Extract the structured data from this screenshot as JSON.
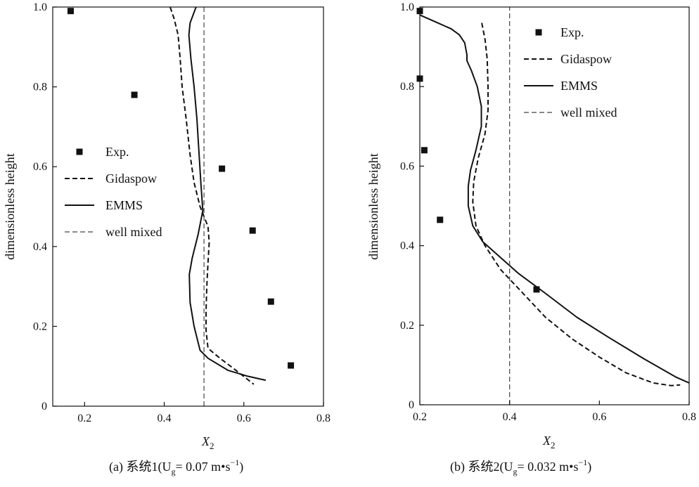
{
  "chart_data": [
    {
      "type": "scatter",
      "caption": "(a) 系统1(U",
      "caption_sub": "g",
      "caption_rest": "= 0.07 m•s",
      "caption_sup": "−1",
      "caption_end": ")",
      "xlabel": "X",
      "xlabel_sub": "2",
      "ylabel": "dimensionless  height",
      "xlim": [
        0.12,
        0.8
      ],
      "ylim": [
        0,
        1.0
      ],
      "x_ticks": [
        "0.2",
        "0.4",
        "0.6",
        "0.8"
      ],
      "x_tick_values": [
        0.2,
        0.4,
        0.6,
        0.8
      ],
      "y_ticks": [
        "0",
        "0.2",
        "0.4",
        "0.6",
        "0.8",
        "1.0"
      ],
      "y_tick_values": [
        0,
        0.2,
        0.4,
        0.6,
        0.8,
        1.0
      ],
      "legend_placement": "middle-left",
      "series": [
        {
          "name": "Exp.",
          "kind": "markers",
          "points": [
            [
              0.165,
              0.99
            ],
            [
              0.325,
              0.78
            ],
            [
              0.545,
              0.595
            ],
            [
              0.622,
              0.44
            ],
            [
              0.668,
              0.262
            ],
            [
              0.718,
              0.102
            ]
          ]
        },
        {
          "name": "Gidaspow",
          "kind": "dashed",
          "points": [
            [
              0.415,
              1.0
            ],
            [
              0.425,
              0.97
            ],
            [
              0.435,
              0.93
            ],
            [
              0.44,
              0.87
            ],
            [
              0.445,
              0.8
            ],
            [
              0.455,
              0.72
            ],
            [
              0.465,
              0.63
            ],
            [
              0.475,
              0.56
            ],
            [
              0.49,
              0.5
            ],
            [
              0.51,
              0.45
            ],
            [
              0.513,
              0.41
            ],
            [
              0.51,
              0.36
            ],
            [
              0.507,
              0.3
            ],
            [
              0.505,
              0.24
            ],
            [
              0.505,
              0.19
            ],
            [
              0.51,
              0.145
            ],
            [
              0.54,
              0.12
            ],
            [
              0.58,
              0.09
            ],
            [
              0.625,
              0.055
            ]
          ]
        },
        {
          "name": "EMMS",
          "kind": "solid",
          "points": [
            [
              0.48,
              1.0
            ],
            [
              0.465,
              0.96
            ],
            [
              0.462,
              0.93
            ],
            [
              0.467,
              0.87
            ],
            [
              0.475,
              0.8
            ],
            [
              0.482,
              0.72
            ],
            [
              0.487,
              0.64
            ],
            [
              0.492,
              0.56
            ],
            [
              0.497,
              0.49
            ],
            [
              0.485,
              0.43
            ],
            [
              0.47,
              0.37
            ],
            [
              0.463,
              0.33
            ],
            [
              0.465,
              0.26
            ],
            [
              0.475,
              0.2
            ],
            [
              0.49,
              0.14
            ],
            [
              0.51,
              0.12
            ],
            [
              0.56,
              0.09
            ],
            [
              0.61,
              0.075
            ],
            [
              0.655,
              0.065
            ]
          ]
        },
        {
          "name": "well mixed",
          "kind": "thin-dashed",
          "points": [
            [
              0.5,
              0
            ],
            [
              0.5,
              1.0
            ]
          ]
        }
      ]
    },
    {
      "type": "scatter",
      "caption": "(b) 系统2(U",
      "caption_sub": "g",
      "caption_rest": "= 0.032 m•s",
      "caption_sup": "−1",
      "caption_end": ")",
      "xlabel": "X",
      "xlabel_sub": "2",
      "ylabel": "dimensionless  height",
      "xlim": [
        0.2,
        0.8
      ],
      "ylim": [
        0,
        1.0
      ],
      "x_ticks": [
        "0.2",
        "0.4",
        "0.6",
        "0.8"
      ],
      "x_tick_values": [
        0.2,
        0.4,
        0.6,
        0.8
      ],
      "y_ticks": [
        "0",
        "0.2",
        "0.4",
        "0.6",
        "0.8",
        "1.0"
      ],
      "y_tick_values": [
        0,
        0.2,
        0.4,
        0.6,
        0.8,
        1.0
      ],
      "legend_placement": "top-right",
      "series": [
        {
          "name": "Exp.",
          "kind": "markers",
          "points": [
            [
              0.2,
              0.99
            ],
            [
              0.2,
              0.82
            ],
            [
              0.21,
              0.64
            ],
            [
              0.245,
              0.465
            ],
            [
              0.46,
              0.29
            ]
          ]
        },
        {
          "name": "Gidaspow",
          "kind": "dashed",
          "points": [
            [
              0.338,
              0.96
            ],
            [
              0.345,
              0.92
            ],
            [
              0.35,
              0.87
            ],
            [
              0.352,
              0.8
            ],
            [
              0.352,
              0.74
            ],
            [
              0.345,
              0.68
            ],
            [
              0.33,
              0.62
            ],
            [
              0.32,
              0.56
            ],
            [
              0.318,
              0.51
            ],
            [
              0.325,
              0.45
            ],
            [
              0.345,
              0.4
            ],
            [
              0.38,
              0.34
            ],
            [
              0.43,
              0.28
            ],
            [
              0.48,
              0.22
            ],
            [
              0.54,
              0.165
            ],
            [
              0.6,
              0.12
            ],
            [
              0.66,
              0.08
            ],
            [
              0.72,
              0.055
            ],
            [
              0.76,
              0.048
            ],
            [
              0.78,
              0.05
            ]
          ]
        },
        {
          "name": "EMMS",
          "kind": "solid",
          "points": [
            [
              0.2,
              0.98
            ],
            [
              0.24,
              0.96
            ],
            [
              0.27,
              0.945
            ],
            [
              0.288,
              0.93
            ],
            [
              0.3,
              0.91
            ],
            [
              0.305,
              0.88
            ],
            [
              0.305,
              0.865
            ],
            [
              0.315,
              0.84
            ],
            [
              0.328,
              0.8
            ],
            [
              0.337,
              0.75
            ],
            [
              0.337,
              0.7
            ],
            [
              0.325,
              0.64
            ],
            [
              0.313,
              0.59
            ],
            [
              0.308,
              0.55
            ],
            [
              0.308,
              0.5
            ],
            [
              0.318,
              0.45
            ],
            [
              0.34,
              0.41
            ],
            [
              0.37,
              0.38
            ],
            [
              0.42,
              0.33
            ],
            [
              0.48,
              0.28
            ],
            [
              0.55,
              0.22
            ],
            [
              0.62,
              0.17
            ],
            [
              0.7,
              0.115
            ],
            [
              0.77,
              0.07
            ],
            [
              0.8,
              0.055
            ]
          ]
        },
        {
          "name": "well mixed",
          "kind": "thin-dashed",
          "points": [
            [
              0.4,
              0
            ],
            [
              0.4,
              1.0
            ]
          ]
        }
      ]
    }
  ]
}
